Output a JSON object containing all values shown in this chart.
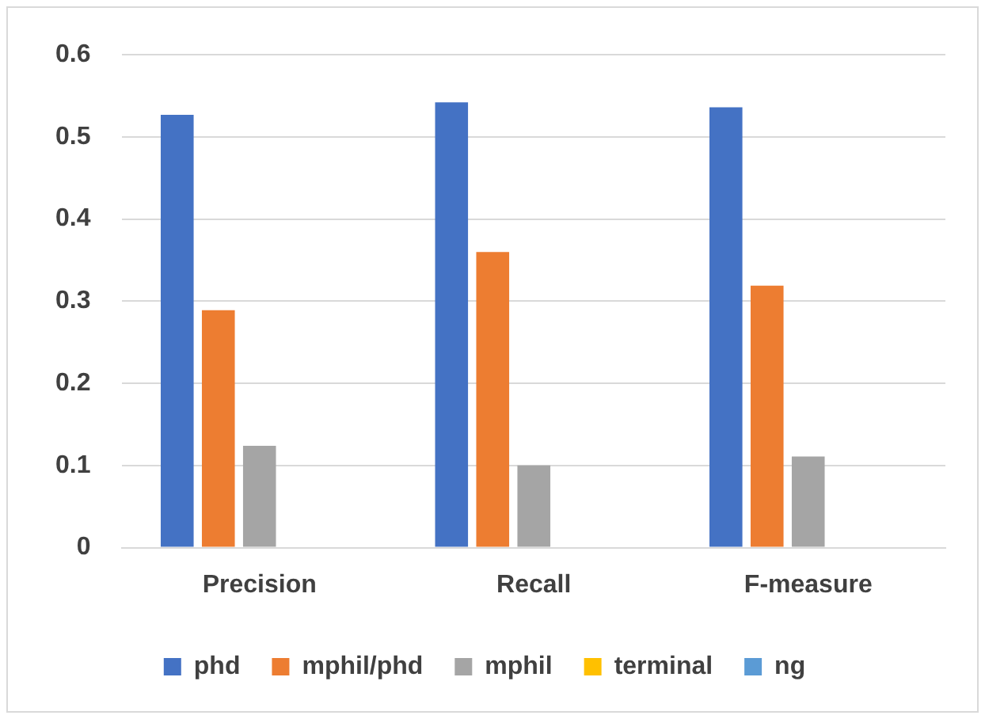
{
  "chart_data": {
    "type": "bar",
    "categories": [
      "Precision",
      "Recall",
      "F-measure"
    ],
    "series": [
      {
        "name": "phd",
        "color": "#4472c4",
        "values": [
          0.527,
          0.542,
          0.536
        ]
      },
      {
        "name": "mphil/phd",
        "color": "#ed7d31",
        "values": [
          0.289,
          0.36,
          0.319
        ]
      },
      {
        "name": "mphil",
        "color": "#a5a5a5",
        "values": [
          0.124,
          0.1,
          0.111
        ]
      },
      {
        "name": "terminal",
        "color": "#ffc000",
        "values": [
          0,
          0,
          0
        ]
      },
      {
        "name": "ng",
        "color": "#5b9bd5",
        "values": [
          0,
          0,
          0
        ]
      }
    ],
    "ylim": [
      0,
      0.6
    ],
    "yticks": [
      0,
      0.1,
      0.2,
      0.3,
      0.4,
      0.5,
      0.6
    ],
    "grid": "y",
    "legend": "bottom"
  }
}
